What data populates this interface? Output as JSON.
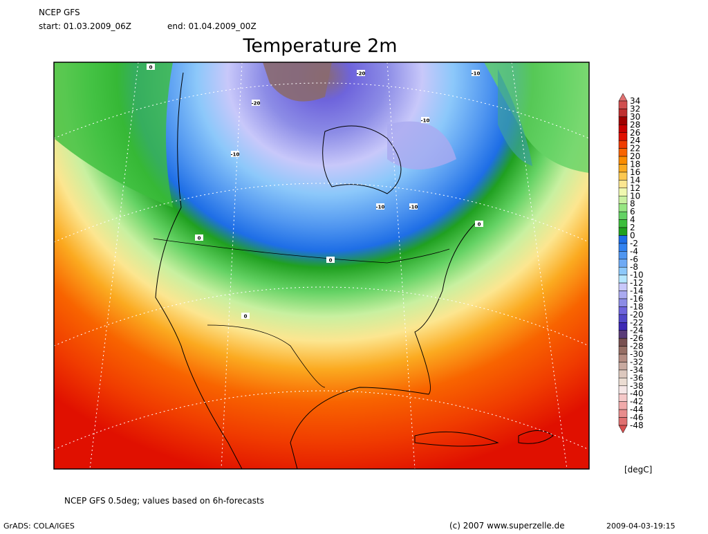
{
  "header": {
    "model": "NCEP GFS",
    "start": "start: 01.03.2009_06Z",
    "end": "end: 01.04.2009_00Z"
  },
  "title": "Temperature 2m",
  "contour_labels": [
    "0",
    "-20",
    "-10",
    "-20",
    "-10",
    "-10",
    "-10",
    "-10",
    "0",
    "0",
    "0",
    "0"
  ],
  "legend": {
    "levels": [
      34,
      32,
      30,
      28,
      26,
      24,
      22,
      20,
      18,
      16,
      14,
      12,
      10,
      8,
      6,
      4,
      2,
      0,
      -2,
      -4,
      -6,
      -8,
      -10,
      -12,
      -14,
      -16,
      -18,
      -20,
      -22,
      -24,
      -26,
      -28,
      -30,
      -32,
      -34,
      -36,
      -38,
      -40,
      -42,
      -44,
      -46,
      -48
    ],
    "colors": [
      "#e07070",
      "#d05050",
      "#c03030",
      "#a00000",
      "#c80000",
      "#e01000",
      "#f03c00",
      "#f86400",
      "#fa8c00",
      "#fbaa20",
      "#fcc850",
      "#fce690",
      "#f0f8b0",
      "#c8f0a0",
      "#96e682",
      "#64d264",
      "#3cbe3c",
      "#20a020",
      "#1e6ee6",
      "#3282f0",
      "#5096f0",
      "#6eaaf5",
      "#8cc8fa",
      "#b4e6ff",
      "#c8c8fa",
      "#aaaaf0",
      "#8c8ce6",
      "#6e64dc",
      "#5046c8",
      "#3c28b4",
      "#5a3c78",
      "#785050",
      "#966e64",
      "#b48c82",
      "#c8aaa0",
      "#dcc8be",
      "#ebdcd2",
      "#f5e6e6",
      "#f5c8c8",
      "#f0aaaa",
      "#e88c8c",
      "#e07070",
      "#d85050"
    ],
    "unit": "[degC]"
  },
  "footer": {
    "note": "NCEP GFS 0.5deg; values based on 6h-forecasts",
    "software": "GrADS: COLA/IGES",
    "copyright": "(c) 2007 www.superzelle.de",
    "timestamp": "2009-04-03-19:15"
  }
}
